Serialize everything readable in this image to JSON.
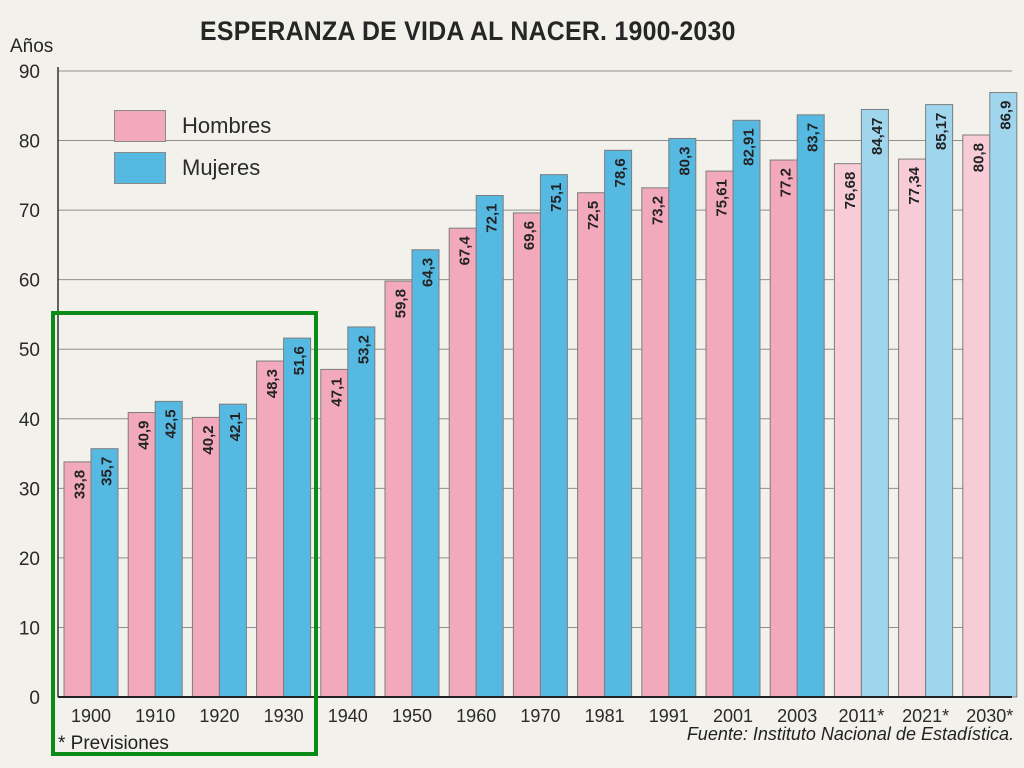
{
  "chart_data": {
    "type": "bar",
    "title": "ESPERANZA DE VIDA AL NACER. 1900-2030",
    "ylabel": "Años",
    "xlabel": "",
    "ylim": [
      0,
      90
    ],
    "yticks": [
      "0",
      "10",
      "20",
      "30",
      "40",
      "50",
      "60",
      "70",
      "80",
      "90"
    ],
    "grid": "horizontal",
    "legend_position": "top-left",
    "categories": [
      "1900",
      "1910",
      "1920",
      "1930",
      "1940",
      "1950",
      "1960",
      "1970",
      "1981",
      "1991",
      "2001",
      "2003",
      "2011*",
      "2021*",
      "2030*"
    ],
    "series": [
      {
        "name": "Hombres",
        "color": "#f2a9bb",
        "projection_color": "#f7ccd7",
        "values": [
          33.8,
          40.9,
          40.2,
          48.3,
          47.1,
          59.8,
          67.4,
          69.6,
          72.5,
          73.2,
          75.61,
          77.2,
          76.68,
          77.34,
          80.8
        ],
        "labels": [
          "33,8",
          "40,9",
          "40,2",
          "48,3",
          "47,1",
          "59,8",
          "67,4",
          "69,6",
          "72,5",
          "73,2",
          "75,61",
          "77,2",
          "76,68",
          "77,34",
          "80,8"
        ]
      },
      {
        "name": "Mujeres",
        "color": "#56b9e2",
        "projection_color": "#9fd6ee",
        "values": [
          35.7,
          42.5,
          42.1,
          51.6,
          53.2,
          64.3,
          72.1,
          75.1,
          78.6,
          80.3,
          82.91,
          83.7,
          84.47,
          85.17,
          86.9
        ],
        "labels": [
          "35,7",
          "42,5",
          "42,1",
          "51,6",
          "53,2",
          "64,3",
          "72,1",
          "75,1",
          "78,6",
          "80,3",
          "82,91",
          "83,7",
          "84,47",
          "85,17",
          "86,9"
        ]
      }
    ],
    "projection_categories": [
      "2011*",
      "2021*",
      "2030*"
    ],
    "footnote": "* Previsiones",
    "source": "Fuente: Instituto Nacional de Estadística.",
    "highlight": {
      "color": "#0a8a16",
      "categories": [
        "1900",
        "1910",
        "1920",
        "1930"
      ]
    }
  }
}
